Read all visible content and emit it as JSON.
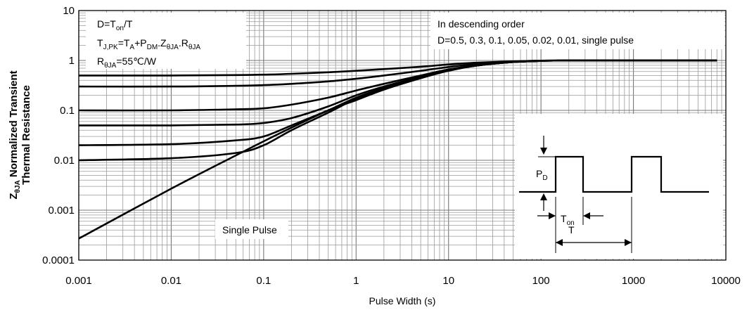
{
  "chart_data": {
    "type": "line",
    "x_scale": "log",
    "y_scale": "log",
    "xlim": [
      0.001,
      10000
    ],
    "ylim": [
      0.0001,
      10
    ],
    "grid": true,
    "xlabel": "Pulse Width (s)",
    "ylabel_line1": "Normalized Transient",
    "ylabel_line2": "Thermal Resistance",
    "ylabel_symbol": "Z",
    "ylabel_symbol_sub": "θJA",
    "x_ticks": [
      "0.001",
      "0.01",
      "0.1",
      "1",
      "10",
      "100",
      "1000",
      "10000"
    ],
    "y_ticks": [
      "0.0001",
      "0.001",
      "0.01",
      "0.1",
      "1",
      "10"
    ],
    "series": [
      {
        "x": [
          0.001,
          0.01,
          0.05,
          0.1,
          0.2,
          0.5,
          1,
          2,
          5,
          10,
          20,
          50,
          100,
          200,
          1000,
          8000
        ],
        "values": [
          0.5,
          0.5,
          0.51,
          0.52,
          0.54,
          0.58,
          0.62,
          0.67,
          0.75,
          0.83,
          0.9,
          0.96,
          0.99,
          1.0,
          1.0,
          1.0
        ]
      },
      {
        "x": [
          0.001,
          0.01,
          0.05,
          0.1,
          0.2,
          0.5,
          1,
          2,
          5,
          10,
          20,
          50,
          100,
          200,
          1000,
          8000
        ],
        "values": [
          0.3,
          0.3,
          0.31,
          0.32,
          0.34,
          0.38,
          0.43,
          0.5,
          0.62,
          0.74,
          0.85,
          0.95,
          0.99,
          1.0,
          1.0,
          1.0
        ]
      },
      {
        "x": [
          0.001,
          0.01,
          0.05,
          0.1,
          0.2,
          0.5,
          1,
          2,
          5,
          10,
          20,
          50,
          100,
          200,
          1000,
          8000
        ],
        "values": [
          0.1,
          0.1,
          0.105,
          0.11,
          0.13,
          0.18,
          0.25,
          0.34,
          0.5,
          0.66,
          0.8,
          0.93,
          0.98,
          1.0,
          1.0,
          1.0
        ]
      },
      {
        "x": [
          0.001,
          0.01,
          0.05,
          0.1,
          0.2,
          0.5,
          1,
          2,
          5,
          10,
          20,
          50,
          100,
          200,
          1000,
          8000
        ],
        "values": [
          0.05,
          0.05,
          0.052,
          0.056,
          0.07,
          0.12,
          0.2,
          0.3,
          0.47,
          0.64,
          0.79,
          0.93,
          0.98,
          1.0,
          1.0,
          1.0
        ]
      },
      {
        "x": [
          0.001,
          0.01,
          0.05,
          0.1,
          0.2,
          0.5,
          1,
          2,
          5,
          10,
          20,
          50,
          100,
          200,
          1000,
          8000
        ],
        "values": [
          0.02,
          0.021,
          0.025,
          0.03,
          0.05,
          0.1,
          0.18,
          0.28,
          0.46,
          0.63,
          0.79,
          0.93,
          0.98,
          1.0,
          1.0,
          1.0
        ]
      },
      {
        "x": [
          0.001,
          0.01,
          0.05,
          0.1,
          0.2,
          0.5,
          1,
          2,
          5,
          10,
          20,
          50,
          100,
          200,
          1000,
          8000
        ],
        "values": [
          0.01,
          0.011,
          0.014,
          0.02,
          0.04,
          0.09,
          0.17,
          0.27,
          0.45,
          0.63,
          0.79,
          0.93,
          0.98,
          1.0,
          1.0,
          1.0
        ]
      },
      {
        "x": [
          0.001,
          0.01,
          0.05,
          0.1,
          0.2,
          0.5,
          1,
          2,
          5,
          10,
          20,
          50,
          100,
          200,
          1000,
          8000
        ],
        "values": [
          0.00027,
          0.0027,
          0.0125,
          0.024,
          0.045,
          0.1,
          0.16,
          0.26,
          0.44,
          0.62,
          0.79,
          0.93,
          0.98,
          1.0,
          1.0,
          1.0
        ]
      }
    ],
    "annotations": {
      "single_pulse": "Single Pulse",
      "order_line1": "In descending order",
      "order_line2": "D=0.5, 0.3, 0.1, 0.05, 0.02, 0.01, single pulse"
    }
  },
  "info_box": {
    "line1_main": "D=T",
    "line1_sub": "on",
    "line1_tail": "/T",
    "line2": [
      {
        "t": "T"
      },
      {
        "t": "J,PK",
        "sub": true
      },
      {
        "t": "=T"
      },
      {
        "t": "A",
        "sub": true
      },
      {
        "t": "+P"
      },
      {
        "t": "DM",
        "sub": true
      },
      {
        "t": ".Z"
      },
      {
        "t": "θJA",
        "sub": true
      },
      {
        "t": ".R"
      },
      {
        "t": "θJA",
        "sub": true
      }
    ],
    "line3_main": "R",
    "line3_sub": "θJA",
    "line3_tail": "=55℃/W"
  },
  "inset": {
    "pd_main": "P",
    "pd_sub": "D",
    "ton_main": "T",
    "ton_sub": "on",
    "t_label": "T"
  }
}
